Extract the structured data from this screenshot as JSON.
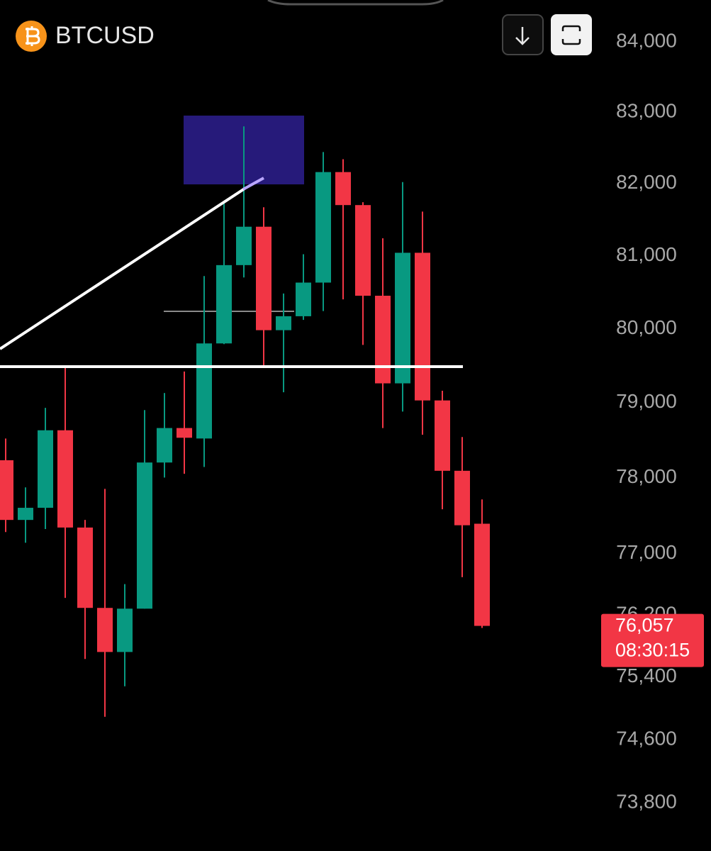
{
  "chart_data": {
    "type": "candlestick",
    "title": "BTCUSD",
    "open": [
      78230,
      77440,
      77600,
      78630,
      77340,
      76290,
      75720,
      76280,
      78200,
      78660,
      78520,
      79800,
      80870,
      81400,
      79980,
      80170,
      80630,
      82160,
      81700,
      80450,
      79260,
      81040,
      79030,
      78090,
      77390
    ],
    "high": [
      78520,
      77870,
      78930,
      79470,
      77440,
      77850,
      76600,
      78900,
      79130,
      79420,
      80720,
      81720,
      82800,
      81670,
      80480,
      81020,
      82440,
      82340,
      81740,
      81240,
      82020,
      81610,
      79160,
      78540,
      77710
    ],
    "low": [
      77280,
      77140,
      77320,
      76420,
      75630,
      74890,
      75280,
      76280,
      78000,
      78050,
      78140,
      79790,
      80700,
      79470,
      79140,
      80120,
      80240,
      80400,
      79780,
      78660,
      78880,
      78570,
      77580,
      76690,
      76030
    ],
    "close": [
      77440,
      77600,
      78630,
      77340,
      76290,
      75720,
      76280,
      78200,
      78660,
      78530,
      79800,
      80870,
      81400,
      79980,
      80170,
      80630,
      82160,
      81700,
      80450,
      79260,
      81040,
      79030,
      78090,
      77370,
      76057
    ],
    "up_color": "#089981",
    "down_color": "#f23645",
    "log_scale": true,
    "ylim": [
      73200,
      84600
    ],
    "yticks": [
      {
        "value": 84000,
        "label": "84,000"
      },
      {
        "value": 83000,
        "label": "83,000"
      },
      {
        "value": 82000,
        "label": "82,000"
      },
      {
        "value": 81000,
        "label": "81,000"
      },
      {
        "value": 80000,
        "label": "80,000"
      },
      {
        "value": 79000,
        "label": "79,000"
      },
      {
        "value": 78000,
        "label": "78,000"
      },
      {
        "value": 77000,
        "label": "77,000"
      },
      {
        "value": 76200,
        "label": "76,200"
      },
      {
        "value": 75400,
        "label": "75,400"
      },
      {
        "value": 74600,
        "label": "74,600"
      },
      {
        "value": 73800,
        "label": "73,800"
      }
    ],
    "last_price": {
      "value": 76057,
      "label": "76,057"
    },
    "countdown": "08:30:15"
  }
}
